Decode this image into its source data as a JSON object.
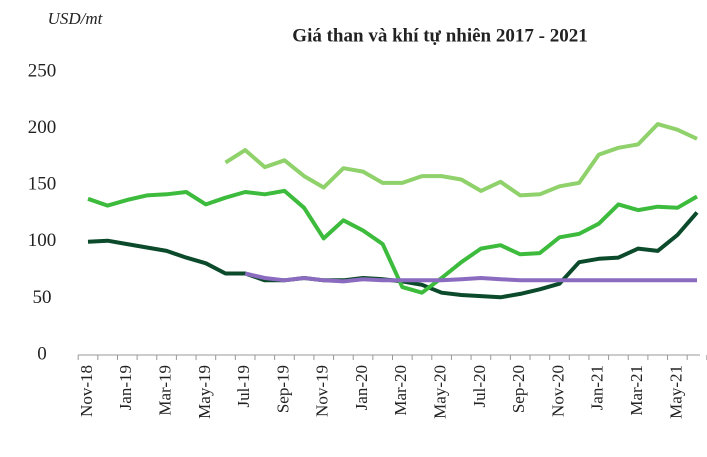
{
  "chart_data": {
    "type": "line",
    "title": "Giá than và khí tự nhiên 2017 - 2021",
    "y_label": "USD/mt",
    "categories": [
      "Nov-18",
      null,
      "Jan-19",
      null,
      "Mar-19",
      null,
      "May-19",
      null,
      "Jul-19",
      null,
      "Sep-19",
      null,
      "Nov-19",
      null,
      "Jan-20",
      null,
      "Mar-20",
      null,
      "May-20",
      null,
      "Jul-20",
      null,
      "Sep-20",
      null,
      "Nov-20",
      null,
      "Jan-21",
      null,
      "Mar-21",
      null,
      "May-21",
      null
    ],
    "series": [
      {
        "color": "#0b4a2b",
        "values": [
          100,
          101,
          98,
          95,
          92,
          86,
          81,
          72,
          72,
          66,
          66,
          68,
          66,
          66,
          68,
          67,
          65,
          62,
          55,
          53,
          52,
          51,
          54,
          58,
          63,
          82,
          85,
          86,
          94,
          92,
          106,
          126
        ]
      },
      {
        "color": "#3dbb3d",
        "values": [
          138,
          132,
          137,
          141,
          142,
          144,
          133,
          139,
          144,
          142,
          145,
          130,
          103,
          119,
          110,
          98,
          60,
          55,
          68,
          82,
          94,
          97,
          89,
          90,
          104,
          107,
          116,
          133,
          128,
          131,
          130,
          140
        ]
      },
      {
        "color": "#8fd16a",
        "values": [
          null,
          null,
          null,
          null,
          null,
          null,
          null,
          170,
          181,
          166,
          172,
          158,
          148,
          165,
          162,
          152,
          152,
          158,
          158,
          155,
          145,
          153,
          141,
          142,
          149,
          152,
          177,
          183,
          186,
          204,
          199,
          191
        ]
      },
      {
        "color": "#8a6bbf",
        "values": [
          null,
          null,
          null,
          null,
          null,
          null,
          null,
          null,
          72,
          68,
          66,
          68,
          66,
          65,
          67,
          66,
          66,
          66,
          66,
          67,
          68,
          67,
          66,
          66,
          66,
          66,
          66,
          66,
          66,
          66,
          66,
          66
        ]
      }
    ],
    "ylim": [
      0,
      250
    ],
    "yticks": [
      0,
      50,
      100,
      150,
      200,
      250
    ],
    "grid": false
  }
}
